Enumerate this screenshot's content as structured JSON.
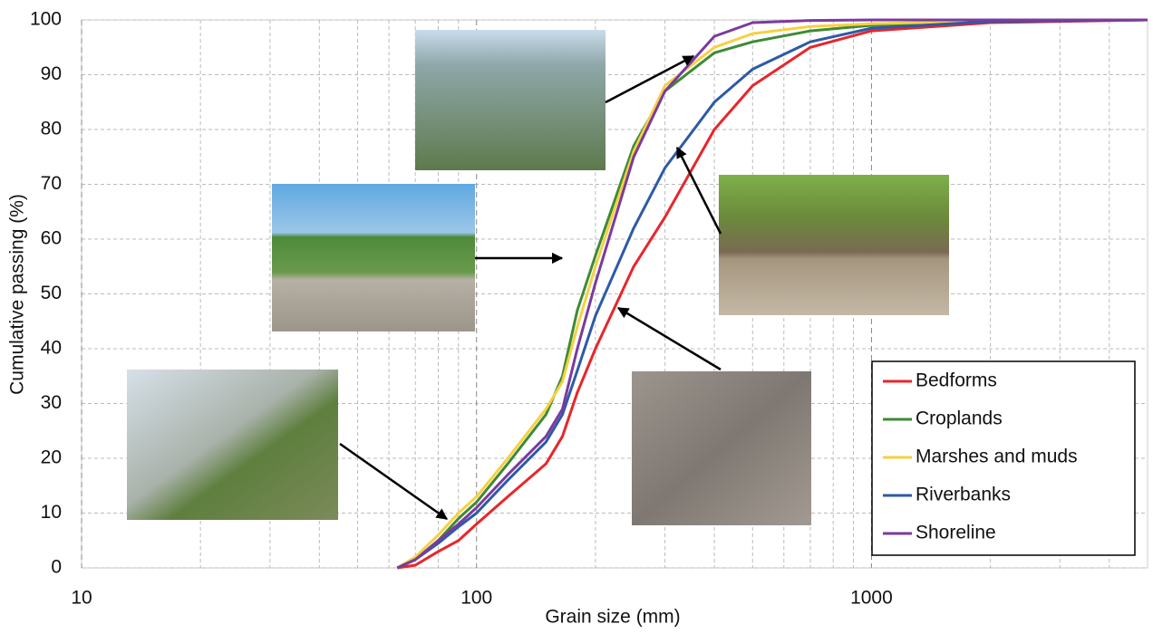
{
  "chart_data": {
    "type": "line",
    "x_label": "Grain size (mm)",
    "y_label": "Cumulative passing (%)",
    "x": [
      63,
      70,
      80,
      90,
      100,
      120,
      150,
      165,
      180,
      200,
      250,
      300,
      400,
      500,
      700,
      1000,
      2000,
      5000
    ],
    "series": [
      {
        "name": "Bedforms",
        "color": "#e8262a",
        "values": [
          0,
          0.5,
          3,
          5,
          8,
          13,
          19,
          24,
          32,
          40,
          55,
          64,
          80,
          88,
          95,
          98,
          99.5,
          100
        ]
      },
      {
        "name": "Croplands",
        "color": "#3f8a35",
        "values": [
          0,
          1.5,
          5,
          9,
          12,
          19,
          28,
          35,
          47,
          57,
          77,
          87,
          94,
          96,
          98,
          99,
          99.8,
          100
        ]
      },
      {
        "name": "Marshes and muds",
        "color": "#f5d142",
        "values": [
          0,
          2,
          6,
          10,
          13,
          20,
          29,
          34,
          44,
          55,
          76,
          88,
          95,
          97.5,
          98.8,
          99.3,
          99.8,
          100
        ]
      },
      {
        "name": "Riverbanks",
        "color": "#2d5aa8",
        "values": [
          0,
          1.5,
          4.5,
          7.5,
          10,
          16,
          23,
          28,
          36,
          46,
          62,
          73,
          85,
          91,
          96,
          98.5,
          99.7,
          100
        ]
      },
      {
        "name": "Shoreline",
        "color": "#7a3b9e",
        "values": [
          0,
          1.5,
          5,
          8,
          11,
          17,
          24,
          29,
          40,
          52,
          75,
          87,
          97,
          99.5,
          99.9,
          100,
          100,
          100
        ]
      }
    ],
    "xlog": true,
    "xlim": [
      10,
      5000
    ],
    "xticks": [
      10,
      100,
      1000
    ],
    "ylim": [
      0,
      100
    ],
    "yticks": [
      0,
      10,
      20,
      30,
      40,
      50,
      60,
      70,
      80,
      90,
      100
    ],
    "grid": true,
    "legend": "lower right"
  }
}
